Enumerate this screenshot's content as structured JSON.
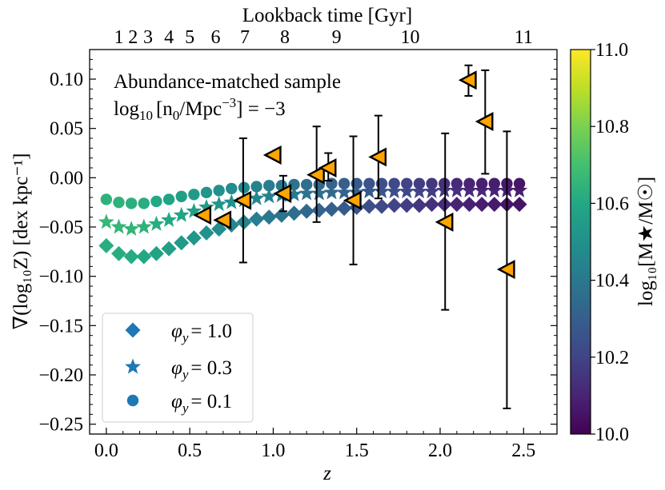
{
  "chart_data": {
    "type": "scatter",
    "x_axis": {
      "label": "z",
      "range": [
        -0.1,
        2.7
      ],
      "ticks": [
        0.0,
        0.5,
        1.0,
        1.5,
        2.0,
        2.5
      ],
      "tick_labels": [
        "0.0",
        "0.5",
        "1.0",
        "1.5",
        "2.0",
        "2.5"
      ]
    },
    "top_axis": {
      "label": "Lookback time [Gyr]",
      "ticks": [
        {
          "label": "1",
          "z": 0.075
        },
        {
          "label": "2",
          "z": 0.16
        },
        {
          "label": "3",
          "z": 0.25
        },
        {
          "label": "4",
          "z": 0.375
        },
        {
          "label": "5",
          "z": 0.5
        },
        {
          "label": "6",
          "z": 0.655
        },
        {
          "label": "7",
          "z": 0.83
        },
        {
          "label": "8",
          "z": 1.07
        },
        {
          "label": "9",
          "z": 1.38
        },
        {
          "label": "10",
          "z": 1.82
        },
        {
          "label": "11",
          "z": 2.5
        }
      ]
    },
    "y_axis": {
      "label": "∇(log₁₀Z) [dex kpc⁻¹]",
      "range": [
        -0.26,
        0.13
      ],
      "ticks": [
        0.1,
        0.05,
        0.0,
        -0.05,
        -0.1,
        -0.15,
        -0.2,
        -0.25
      ],
      "tick_labels": [
        "0.10",
        "0.05",
        "0.00",
        "−0.05",
        "−0.10",
        "−0.15",
        "−0.20",
        "−0.25"
      ]
    },
    "colorbar": {
      "label": "log₁₀[M★/M☉]",
      "range": [
        10.0,
        11.0
      ],
      "ticks": [
        11.0,
        10.8,
        10.6,
        10.4,
        10.2,
        10.0
      ],
      "tick_labels": [
        "11.0",
        "10.8",
        "10.6",
        "10.4",
        "10.2",
        "10.0"
      ]
    },
    "annotation": {
      "line1": "Abundance-matched sample",
      "line2_prefix": "log",
      "line2_sub": "10",
      "line2_main": "[n",
      "line2_sub2": "0",
      "line2_unit": "/Mpc",
      "line2_sup": "−3",
      "line2_suffix": "] = −3"
    },
    "legend": {
      "location": "lower-left",
      "entries": [
        {
          "marker": "diamond",
          "label": "φy = 1.0",
          "phi_sym": "φ",
          "phi_sub": "y",
          "value": "= 1.0"
        },
        {
          "marker": "star",
          "label": "φy = 0.3",
          "phi_sym": "φ",
          "phi_sub": "y",
          "value": "= 0.3"
        },
        {
          "marker": "circle",
          "label": "φy = 0.1",
          "phi_sym": "φ",
          "phi_sub": "y",
          "value": "= 0.1"
        }
      ]
    },
    "series": [
      {
        "name": "phi_y = 1.0",
        "marker": "diamond",
        "x": [
          0.0,
          0.075,
          0.15,
          0.225,
          0.3,
          0.375,
          0.45,
          0.525,
          0.6,
          0.675,
          0.75,
          0.825,
          0.9,
          0.975,
          1.05,
          1.125,
          1.2,
          1.275,
          1.35,
          1.425,
          1.5,
          1.575,
          1.65,
          1.725,
          1.8,
          1.875,
          1.95,
          2.025,
          2.1,
          2.175,
          2.25,
          2.325,
          2.4,
          2.475
        ],
        "y": [
          -0.069,
          -0.077,
          -0.08,
          -0.08,
          -0.077,
          -0.072,
          -0.066,
          -0.061,
          -0.056,
          -0.052,
          -0.048,
          -0.045,
          -0.042,
          -0.04,
          -0.038,
          -0.036,
          -0.034,
          -0.033,
          -0.032,
          -0.031,
          -0.03,
          -0.029,
          -0.029,
          -0.028,
          -0.028,
          -0.028,
          -0.027,
          -0.027,
          -0.027,
          -0.027,
          -0.027,
          -0.027,
          -0.027,
          -0.027
        ],
        "mass": [
          10.62,
          10.62,
          10.61,
          10.6,
          10.58,
          10.56,
          10.54,
          10.52,
          10.5,
          10.48,
          10.46,
          10.44,
          10.42,
          10.4,
          10.38,
          10.36,
          10.34,
          10.32,
          10.3,
          10.28,
          10.26,
          10.24,
          10.22,
          10.2,
          10.18,
          10.16,
          10.14,
          10.12,
          10.1,
          10.09,
          10.08,
          10.07,
          10.06,
          10.05
        ]
      },
      {
        "name": "phi_y = 0.3",
        "marker": "star",
        "x": [
          0.0,
          0.075,
          0.15,
          0.225,
          0.3,
          0.375,
          0.45,
          0.525,
          0.6,
          0.675,
          0.75,
          0.825,
          0.9,
          0.975,
          1.05,
          1.125,
          1.2,
          1.275,
          1.35,
          1.425,
          1.5,
          1.575,
          1.65,
          1.725,
          1.8,
          1.875,
          1.95,
          2.025,
          2.1,
          2.175,
          2.25,
          2.325,
          2.4,
          2.475
        ],
        "y": [
          -0.045,
          -0.05,
          -0.052,
          -0.05,
          -0.047,
          -0.043,
          -0.038,
          -0.034,
          -0.03,
          -0.027,
          -0.025,
          -0.023,
          -0.021,
          -0.019,
          -0.018,
          -0.017,
          -0.016,
          -0.016,
          -0.015,
          -0.015,
          -0.015,
          -0.014,
          -0.014,
          -0.014,
          -0.014,
          -0.014,
          -0.014,
          -0.013,
          -0.013,
          -0.013,
          -0.013,
          -0.013,
          -0.013,
          -0.013
        ],
        "mass": [
          10.66,
          10.66,
          10.65,
          10.64,
          10.62,
          10.6,
          10.58,
          10.56,
          10.54,
          10.52,
          10.5,
          10.48,
          10.46,
          10.44,
          10.42,
          10.4,
          10.38,
          10.36,
          10.34,
          10.32,
          10.3,
          10.28,
          10.26,
          10.24,
          10.22,
          10.2,
          10.18,
          10.16,
          10.14,
          10.12,
          10.11,
          10.1,
          10.09,
          10.08
        ]
      },
      {
        "name": "phi_y = 0.1",
        "marker": "circle",
        "x": [
          0.0,
          0.075,
          0.15,
          0.225,
          0.3,
          0.375,
          0.45,
          0.525,
          0.6,
          0.675,
          0.75,
          0.825,
          0.9,
          0.975,
          1.05,
          1.125,
          1.2,
          1.275,
          1.35,
          1.425,
          1.5,
          1.575,
          1.65,
          1.725,
          1.8,
          1.875,
          1.95,
          2.025,
          2.1,
          2.175,
          2.25,
          2.325,
          2.4,
          2.475
        ],
        "y": [
          -0.022,
          -0.025,
          -0.026,
          -0.026,
          -0.024,
          -0.022,
          -0.019,
          -0.017,
          -0.015,
          -0.013,
          -0.011,
          -0.01,
          -0.009,
          -0.008,
          -0.008,
          -0.007,
          -0.007,
          -0.007,
          -0.006,
          -0.006,
          -0.006,
          -0.006,
          -0.006,
          -0.006,
          -0.006,
          -0.006,
          -0.006,
          -0.006,
          -0.006,
          -0.006,
          -0.006,
          -0.006,
          -0.006,
          -0.006
        ],
        "mass": [
          10.64,
          10.64,
          10.63,
          10.62,
          10.6,
          10.58,
          10.56,
          10.54,
          10.52,
          10.5,
          10.48,
          10.46,
          10.44,
          10.42,
          10.4,
          10.38,
          10.36,
          10.34,
          10.32,
          10.3,
          10.28,
          10.26,
          10.24,
          10.22,
          10.2,
          10.18,
          10.16,
          10.14,
          10.12,
          10.1,
          10.09,
          10.08,
          10.07,
          10.06
        ]
      },
      {
        "name": "observations",
        "marker": "left-triangle",
        "color": "#FFA500",
        "points": [
          {
            "z": 0.58,
            "y": -0.038
          },
          {
            "z": 0.7,
            "y": -0.043
          },
          {
            "z": 0.82,
            "y": -0.023,
            "err_low": -0.086,
            "err_high": 0.04
          },
          {
            "z": 1.0,
            "y": 0.023
          },
          {
            "z": 1.06,
            "y": -0.016,
            "err_low": -0.034,
            "err_high": 0.002
          },
          {
            "z": 1.26,
            "y": 0.003,
            "err_low": -0.045,
            "err_high": 0.052
          },
          {
            "z": 1.33,
            "y": 0.01,
            "err_low": -0.003,
            "err_high": 0.025
          },
          {
            "z": 1.48,
            "y": -0.023,
            "err_low": -0.088,
            "err_high": 0.042
          },
          {
            "z": 1.63,
            "y": 0.021,
            "err_low": -0.021,
            "err_high": 0.063
          },
          {
            "z": 2.03,
            "y": -0.045,
            "err_low": -0.134,
            "err_high": 0.045
          },
          {
            "z": 2.17,
            "y": 0.099,
            "err_low": 0.083,
            "err_high": 0.114
          },
          {
            "z": 2.27,
            "y": 0.057,
            "err_low": 0.004,
            "err_high": 0.109
          },
          {
            "z": 2.4,
            "y": -0.093,
            "err_low": -0.234,
            "err_high": 0.047
          }
        ]
      }
    ]
  }
}
